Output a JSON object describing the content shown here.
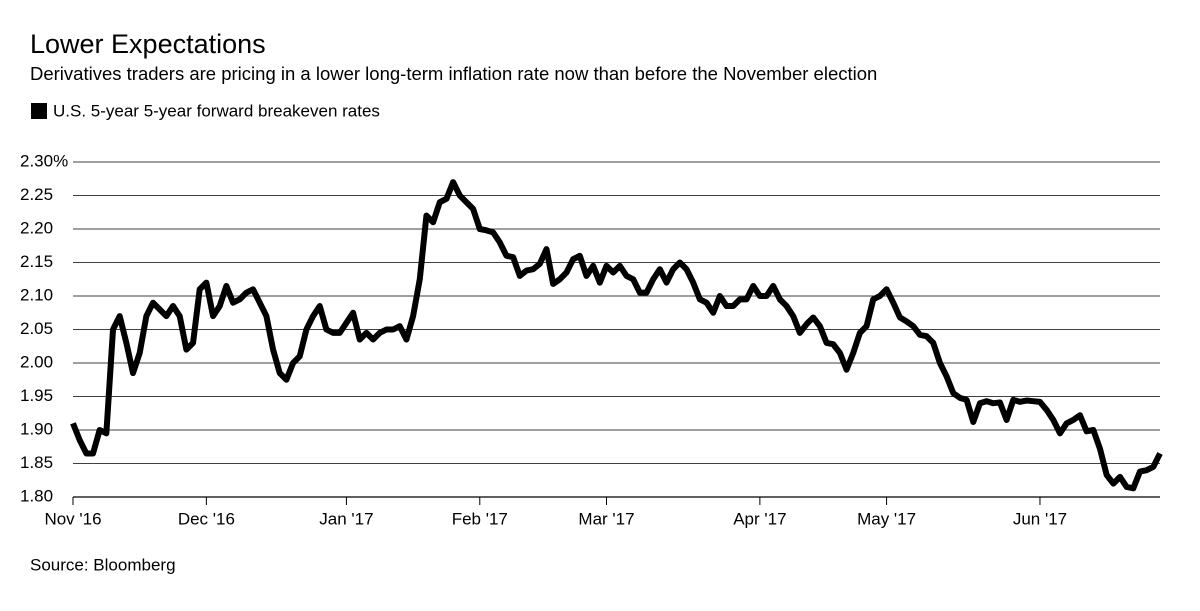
{
  "chart_data": {
    "type": "line",
    "title": "Lower Expectations",
    "subtitle": "Derivatives traders are pricing in a lower long-term inflation rate now than before the November election",
    "source": "Source: Bloomberg",
    "legend": "top-left",
    "grid": true,
    "xlim": [
      0,
      163
    ],
    "xticks": [
      {
        "value": 0,
        "label": "Nov '16"
      },
      {
        "value": 20,
        "label": "Dec '16"
      },
      {
        "value": 41,
        "label": "Jan '17"
      },
      {
        "value": 61,
        "label": "Feb '17"
      },
      {
        "value": 80,
        "label": "Mar '17"
      },
      {
        "value": 103,
        "label": "Apr '17"
      },
      {
        "value": 122,
        "label": "May '17"
      },
      {
        "value": 145,
        "label": "Jun '17"
      }
    ],
    "ylim": [
      1.8,
      2.3
    ],
    "yticks": [
      {
        "value": 1.8,
        "label": "1.80"
      },
      1.85,
      {
        "value": 1.9,
        "label": "1.90"
      },
      1.95,
      {
        "value": 2.0,
        "label": "2.00"
      },
      2.05,
      {
        "value": 2.1,
        "label": "2.10"
      },
      2.15,
      {
        "value": 2.2,
        "label": "2.20"
      },
      2.25,
      {
        "value": 2.3,
        "label": "2.30%"
      }
    ],
    "series": [
      {
        "name": "U.S. 5-year 5-year forward breakeven rates",
        "color": "#000000",
        "values": [
          1.91,
          1.885,
          1.865,
          1.865,
          1.9,
          1.895,
          2.05,
          2.07,
          2.03,
          1.985,
          2.015,
          2.07,
          2.09,
          2.08,
          2.07,
          2.085,
          2.07,
          2.02,
          2.03,
          2.11,
          2.12,
          2.07,
          2.085,
          2.115,
          2.09,
          2.095,
          2.105,
          2.11,
          2.09,
          2.07,
          2.02,
          1.985,
          1.975,
          2.0,
          2.01,
          2.05,
          2.07,
          2.085,
          2.05,
          2.045,
          2.045,
          2.06,
          2.075,
          2.035,
          2.045,
          2.035,
          2.045,
          2.05,
          2.05,
          2.055,
          2.035,
          2.07,
          2.125,
          2.22,
          2.21,
          2.24,
          2.245,
          2.27,
          2.25,
          2.24,
          2.23,
          2.2,
          2.198,
          2.195,
          2.18,
          2.16,
          2.158,
          2.13,
          2.138,
          2.14,
          2.148,
          2.17,
          2.118,
          2.125,
          2.135,
          2.155,
          2.16,
          2.13,
          2.145,
          2.12,
          2.145,
          2.135,
          2.145,
          2.13,
          2.125,
          2.105,
          2.105,
          2.125,
          2.14,
          2.12,
          2.14,
          2.15,
          2.14,
          2.12,
          2.095,
          2.09,
          2.075,
          2.1,
          2.085,
          2.085,
          2.095,
          2.095,
          2.115,
          2.1,
          2.1,
          2.115,
          2.095,
          2.085,
          2.07,
          2.045,
          2.058,
          2.068,
          2.055,
          2.03,
          2.028,
          2.015,
          1.99,
          2.015,
          2.045,
          2.055,
          2.095,
          2.1,
          2.11,
          2.09,
          2.068,
          2.062,
          2.055,
          2.042,
          2.04,
          2.03,
          2.0,
          1.98,
          1.955,
          1.948,
          1.945,
          1.912,
          1.94,
          1.943,
          1.94,
          1.941,
          1.915,
          1.945,
          1.942,
          1.944,
          1.943,
          1.942,
          1.93,
          1.915,
          1.895,
          1.91,
          1.915,
          1.922,
          1.898,
          1.9,
          1.872,
          1.833,
          1.82,
          1.83,
          1.815,
          1.813,
          1.838,
          1.84,
          1.845,
          1.865
        ]
      }
    ]
  }
}
